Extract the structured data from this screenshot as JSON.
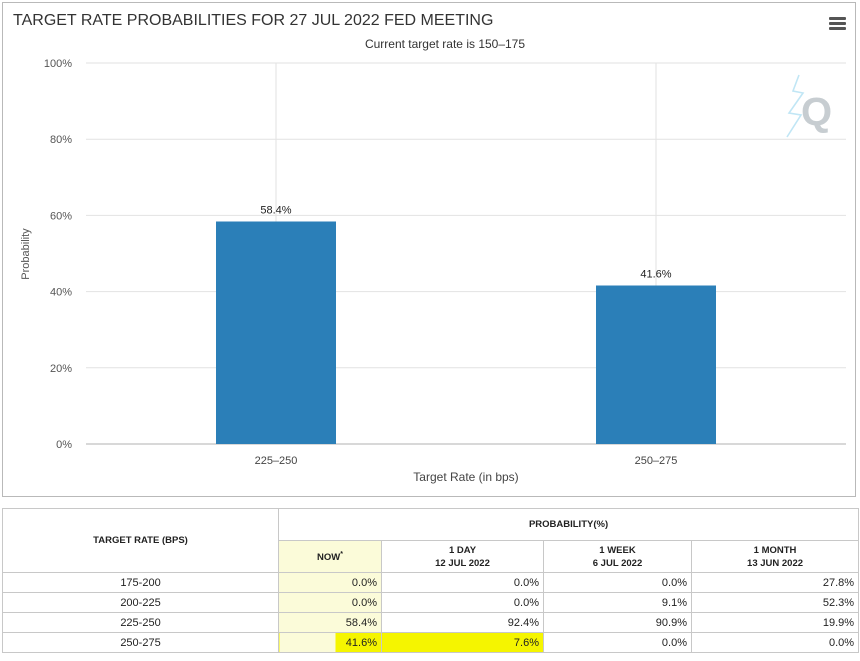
{
  "chart_data": {
    "type": "bar",
    "title": "TARGET RATE PROBABILITIES FOR 27 JUL 2022 FED MEETING",
    "subtitle": "Current target rate is 150–175",
    "xlabel": "Target Rate (in bps)",
    "ylabel": "Probability",
    "categories": [
      "225–250",
      "250–275"
    ],
    "values": [
      58.4,
      41.6
    ],
    "data_labels": [
      "58.4%",
      "41.6%"
    ],
    "ylim": [
      0,
      100
    ],
    "yticks": [
      "0%",
      "20%",
      "40%",
      "60%",
      "80%",
      "100%"
    ],
    "ytick_values": [
      0,
      20,
      40,
      60,
      80,
      100
    ],
    "bar_color": "#2b7fb8",
    "grid": true
  },
  "watermark_icon": "q-logo-icon",
  "menu_icon": "hamburger-menu-icon",
  "table": {
    "rate_header": "TARGET RATE (BPS)",
    "prob_header": "PROBABILITY(%)",
    "columns": [
      {
        "line1": "NOW",
        "sup": "*",
        "line2": ""
      },
      {
        "line1": "1 DAY",
        "line2": "12 JUL 2022"
      },
      {
        "line1": "1 WEEK",
        "line2": "6 JUL 2022"
      },
      {
        "line1": "1 MONTH",
        "line2": "13 JUN 2022"
      }
    ],
    "rows": [
      {
        "rate": "175-200",
        "values": [
          "0.0%",
          "0.0%",
          "0.0%",
          "27.8%"
        ]
      },
      {
        "rate": "200-225",
        "values": [
          "0.0%",
          "0.0%",
          "9.1%",
          "52.3%"
        ]
      },
      {
        "rate": "225-250",
        "values": [
          "58.4%",
          "92.4%",
          "90.9%",
          "19.9%"
        ]
      },
      {
        "rate": "250-275",
        "values": [
          "41.6%",
          "7.6%",
          "0.0%",
          "0.0%"
        ]
      }
    ],
    "highlight_color": "#f5f500"
  }
}
